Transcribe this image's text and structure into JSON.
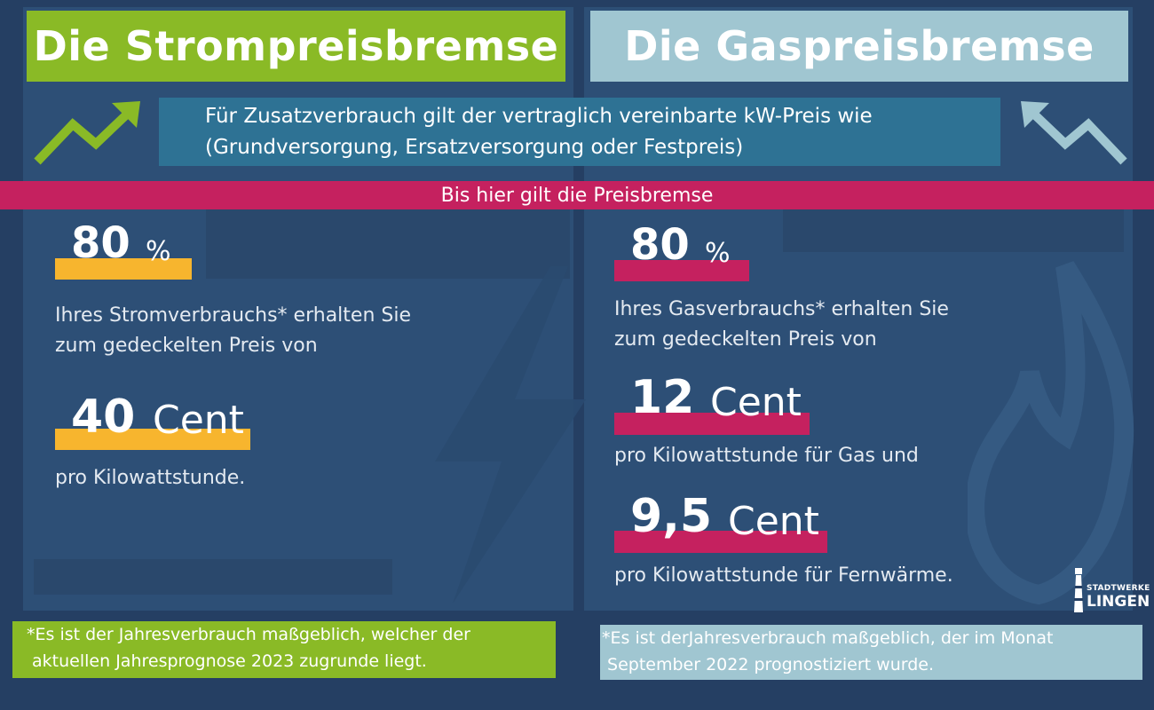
{
  "left": {
    "title": "Die Strompreisbremse",
    "percent_value": "80",
    "percent_unit": "%",
    "text_line1": "Ihres Stromverbrauchs* erhalten Sie",
    "text_line2": "zum gedeckelten Preis von",
    "price_value": "40",
    "price_unit": "Cent",
    "price_caption": "pro Kilowattstunde.",
    "footnote_line1": "*Es ist der Jahresverbrauch maßgeblich, welcher der",
    "footnote_line2": " aktuellen Jahresprognose 2023 zugrunde liegt."
  },
  "right": {
    "title": "Die Gaspreisbremse",
    "percent_value": "80",
    "percent_unit": "%",
    "text_line1": "Ihres Gasverbrauchs* erhalten Sie",
    "text_line2": "zum gedeckelten Preis von",
    "price1_value": "12",
    "price1_unit": "Cent",
    "price1_caption": "pro Kilowattstunde für Gas und",
    "price2_value": "9,5",
    "price2_unit": "Cent",
    "price2_caption": "pro Kilowattstunde für Fernwärme.",
    "footnote_line1": "*Es ist derJahresverbrauch maßgeblich, der im Monat",
    "footnote_line2": " September 2022 prognostiziert wurde."
  },
  "info": {
    "line1": "Für Zusatzverbrauch gilt der vertraglich vereinbarte kW-Preis wie",
    "line2": "(Grundversorgung, Ersatzversorgung oder Festpreis)"
  },
  "band_label": "Bis hier gilt die Preisbremse",
  "logo": {
    "line1": "STADTWERKE",
    "line2": "LINGEN"
  },
  "colors": {
    "strom_green": "#8aba26",
    "gas_lightblue": "#a0c6d1",
    "band_magenta": "#c5215f",
    "highlight_yellow": "#f7b52e",
    "info_blue": "#2e7294",
    "background_navy": "#253f63"
  },
  "icons": {
    "left_arrow": "trend-up-arrow-icon",
    "right_arrow": "trend-down-arrow-icon",
    "left_deco": "lightning-bolt-icon",
    "right_deco": "flame-icon",
    "logo_mark": "lighthouse-icon"
  }
}
